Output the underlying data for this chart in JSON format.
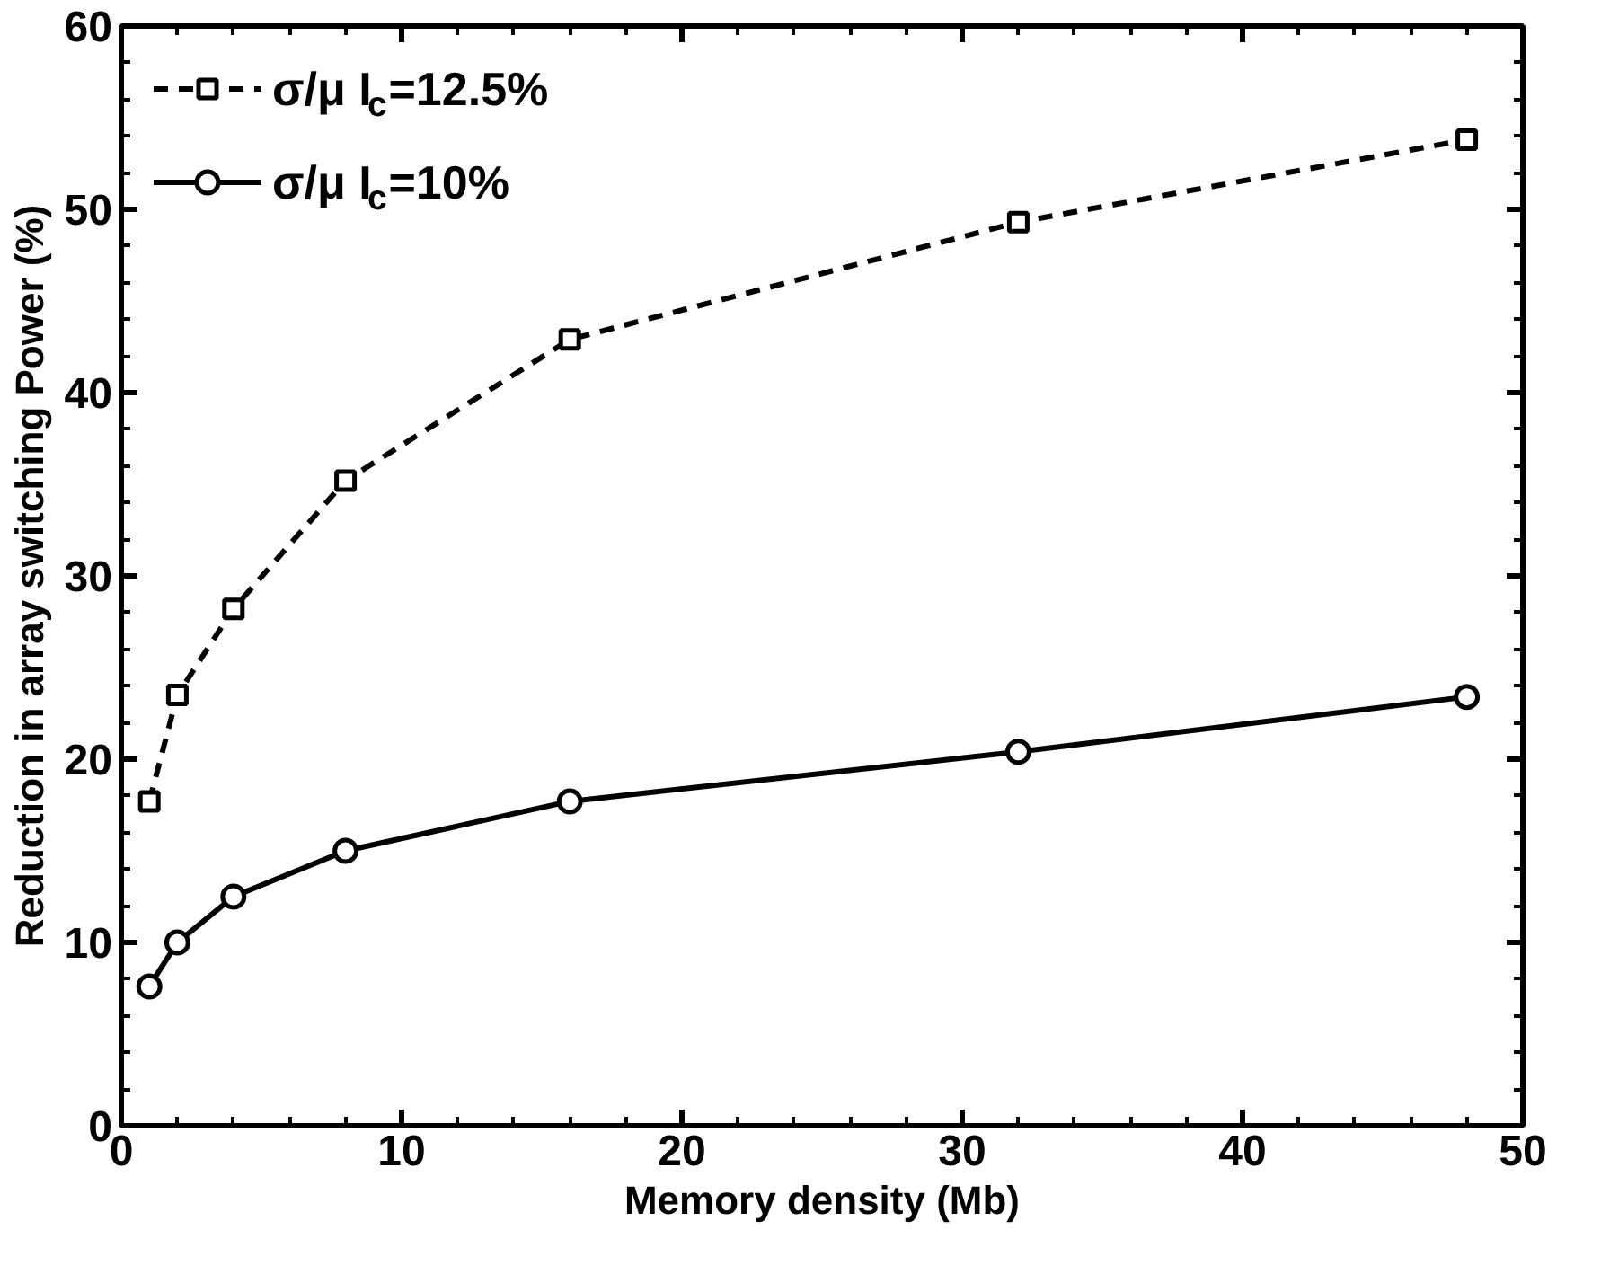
{
  "chart_data": {
    "type": "line",
    "xlabel": "Memory density (Mb)",
    "ylabel": "Reduction in array switching Power (%)",
    "x": [
      1,
      2,
      4,
      8,
      16,
      32,
      48
    ],
    "series": [
      {
        "name": "σ/μ I$_{c}$=12.5%",
        "color": "#000000",
        "values": [
          17.7,
          23.5,
          28.2,
          35.2,
          42.9,
          49.3,
          53.8
        ],
        "marker": "square",
        "line_style": "dashed"
      },
      {
        "name": "σ/μ I$_{c}$=10%",
        "color": "#000000",
        "values": [
          7.6,
          10.0,
          12.5,
          15.0,
          17.7,
          20.4,
          23.4
        ],
        "marker": "circle",
        "line_style": "solid"
      }
    ],
    "xlim": [
      0,
      50
    ],
    "ylim": [
      0,
      60
    ],
    "xticks": [
      0,
      10,
      20,
      30,
      40,
      50
    ],
    "yticks": [
      0,
      10,
      20,
      30,
      40,
      50,
      60
    ],
    "grid": false,
    "legend": "top left"
  }
}
